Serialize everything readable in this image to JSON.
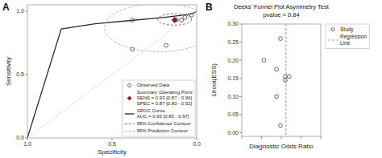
{
  "chart_data": [
    {
      "type": "scatter",
      "annotations": [
        "A"
      ],
      "xlabel": "Specificity",
      "ylabel": "Sensitivity",
      "xlim": [
        1.0,
        0.0
      ],
      "ylim": [
        0.0,
        1.05
      ],
      "xticks": [
        {
          "value": 1.0,
          "label": "1.0"
        },
        {
          "value": 0.5,
          "label": "0.5"
        },
        {
          "value": 0.0,
          "label": "0.0"
        }
      ],
      "yticks": [
        {
          "value": 0.0,
          "label": "0.0"
        },
        {
          "value": 0.5,
          "label": "0.5"
        },
        {
          "value": 1.0,
          "label": "1.0"
        }
      ],
      "grid": false,
      "legend": "lower right",
      "series": [
        {
          "name": "Observed Data",
          "type": "scatter",
          "marker": "open_circle",
          "color": "#555555",
          "x": [
            0.03,
            0.07,
            0.09,
            0.12,
            0.38,
            0.18,
            0.38
          ],
          "values": [
            0.97,
            0.95,
            0.93,
            0.93,
            0.93,
            0.73,
            0.7
          ]
        },
        {
          "name": "Summary Operating Point\nSENS = 0.93 [0.87 - 0.96]\nSPEC = 0.87 [0.80 - 0.92]",
          "type": "scatter",
          "marker": "diamond",
          "color": "#8b1a1a",
          "x": [
            0.13
          ],
          "values": [
            0.93
          ]
        },
        {
          "name": "SROC Curve\nAUC = 0.93 [0.83 - 0.97]",
          "type": "line",
          "line_style": "solid",
          "color": "#2c2c2c",
          "x": [
            0.0,
            0.01,
            0.02,
            0.05,
            0.1,
            0.2,
            0.4,
            0.6,
            0.8,
            1.0
          ],
          "values": [
            1.0,
            0.99,
            0.985,
            0.975,
            0.965,
            0.95,
            0.925,
            0.9,
            0.86,
            0.0
          ]
        },
        {
          "name": "95% Confidence Contour",
          "type": "ellipse",
          "line_style": "dashed",
          "color": "#666666",
          "x": [
            0.13
          ],
          "values": [
            0.935
          ],
          "width": [
            0.2
          ],
          "height": [
            0.09
          ]
        },
        {
          "name": "95% Prediction Contour",
          "type": "ellipse",
          "line_style": "dashed",
          "color": "#aaaaaa",
          "x": [
            0.22
          ],
          "values": [
            0.87
          ],
          "width": [
            0.65
          ],
          "height": [
            0.38
          ]
        },
        {
          "type": "line",
          "line_style": "dashed",
          "color": "#cccccc",
          "x": [
            0,
            1
          ],
          "values": [
            1,
            0
          ]
        }
      ]
    },
    {
      "type": "scatter",
      "annotations": [
        "B"
      ],
      "title": "Deeks' Funnel Plot Asymmetry Test",
      "subtitle": "pvalue = 0.84",
      "xlabel": "Diagnostic Odds Ratio",
      "ylabel": "1/root(ESS)",
      "xlim": [
        0.0,
        1.0
      ],
      "ylim": [
        -0.01,
        0.3
      ],
      "xticks": [
        0.0,
        0.25,
        0.5,
        0.75,
        1.0
      ],
      "yticks": [
        {
          "value": 0.0,
          "label": "0.00"
        },
        {
          "value": 0.05,
          "label": "0.05"
        },
        {
          "value": 0.1,
          "label": "0.10"
        },
        {
          "value": 0.15,
          "label": "0.15"
        },
        {
          "value": 0.2,
          "label": "0.20"
        },
        {
          "value": 0.25,
          "label": "0.25"
        },
        {
          "value": 0.3,
          "label": "0.30"
        }
      ],
      "tick_labels": "y",
      "grid": false,
      "legend": "right",
      "series": [
        {
          "name": "Study",
          "type": "scatter",
          "marker": "open_circle",
          "color": "#555555",
          "x": [
            0.49,
            0.28,
            0.44,
            0.55,
            0.6,
            0.55,
            0.44,
            0.49
          ],
          "values": [
            0.26,
            0.2,
            0.175,
            0.155,
            0.155,
            0.145,
            0.1,
            0.02
          ]
        },
        {
          "name": "Regression\nLine",
          "type": "vline",
          "line_style": "dashed",
          "color": "#7ab0d4",
          "x": [
            0.56
          ]
        }
      ]
    }
  ]
}
